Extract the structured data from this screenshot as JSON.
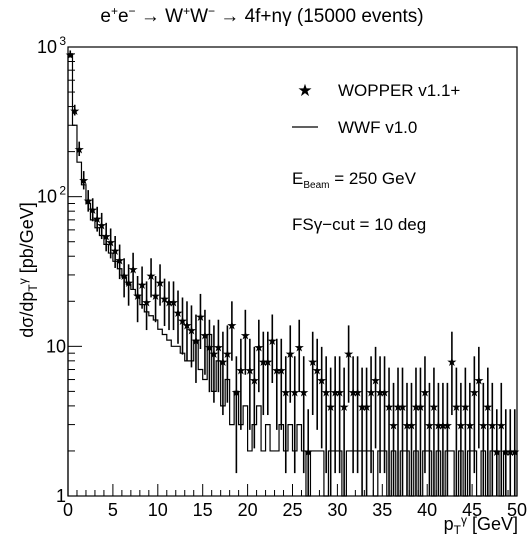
{
  "chart_data": {
    "type": "scatter",
    "title": "e⁺e⁻ → W⁺W⁻ → 4f+nγ (15000 events)",
    "xlabel": "p_T^γ [GeV]",
    "ylabel": "dσ/dp_T^γ [pb/GeV]",
    "xlim": [
      0,
      50
    ],
    "ylim": [
      1,
      1000
    ],
    "yscale": "log",
    "x_ticks": [
      "0",
      "5",
      "10",
      "15",
      "20",
      "25",
      "30",
      "35",
      "40",
      "45",
      "50"
    ],
    "y_ticks": [
      {
        "value": 1,
        "label": "1"
      },
      {
        "value": 10,
        "label": "10"
      },
      {
        "value": 100,
        "label": "10²"
      },
      {
        "value": 1000,
        "label": "10³"
      }
    ],
    "bin_width": 0.5,
    "series": [
      {
        "name": "WOPPER v1.1+",
        "style": "stars-with-error-bars",
        "values": [
          900,
          380,
          210,
          130,
          95,
          83,
          72,
          65,
          55,
          50,
          44,
          38,
          30,
          27,
          33,
          22,
          26,
          20,
          30,
          22,
          27,
          21,
          20,
          20,
          17,
          15,
          14,
          13,
          11,
          16,
          12,
          10,
          9,
          10,
          8,
          9,
          14,
          5,
          7,
          12,
          7,
          6,
          10,
          8,
          8,
          11,
          7,
          7,
          5,
          9,
          5,
          10,
          5,
          2,
          8,
          7,
          6,
          5,
          4,
          5,
          5,
          4,
          9,
          5,
          5,
          4,
          4,
          5,
          6,
          5,
          5,
          4,
          3,
          4,
          4,
          3,
          3,
          4,
          4,
          5,
          3,
          4,
          3,
          3,
          3,
          8,
          4,
          3,
          4,
          3,
          5,
          6,
          3,
          4,
          3,
          2,
          3,
          2,
          2,
          2
        ]
      },
      {
        "name": "WWF v1.0",
        "style": "step-histogram",
        "values": [
          900,
          300,
          170,
          120,
          90,
          70,
          62,
          55,
          48,
          42,
          37,
          33,
          29,
          26,
          24,
          22,
          19,
          17,
          16,
          15,
          13,
          12,
          11,
          10,
          10,
          9,
          8,
          8,
          11,
          7,
          6,
          12,
          5,
          8,
          4,
          6,
          3,
          5,
          3,
          4,
          2,
          3,
          4,
          2,
          3,
          2,
          2,
          3,
          2,
          3,
          2,
          3,
          2,
          1,
          2,
          2,
          2,
          1,
          2,
          2,
          2,
          1,
          2,
          2,
          2,
          2,
          2,
          2,
          1,
          2,
          2,
          1,
          2,
          1,
          2,
          2,
          1,
          2,
          1,
          2,
          2,
          1,
          2,
          1,
          2,
          2,
          1,
          2,
          1,
          2,
          2,
          1,
          2,
          1,
          2,
          2,
          1,
          2,
          2,
          2
        ]
      }
    ],
    "legend": {
      "position": "top-right",
      "entries": [
        "WOPPER v1.1+",
        "WWF v1.0"
      ],
      "annotations": [
        "E_Beam = 250 GeV",
        "FSγ−cut = 10 deg"
      ]
    }
  }
}
